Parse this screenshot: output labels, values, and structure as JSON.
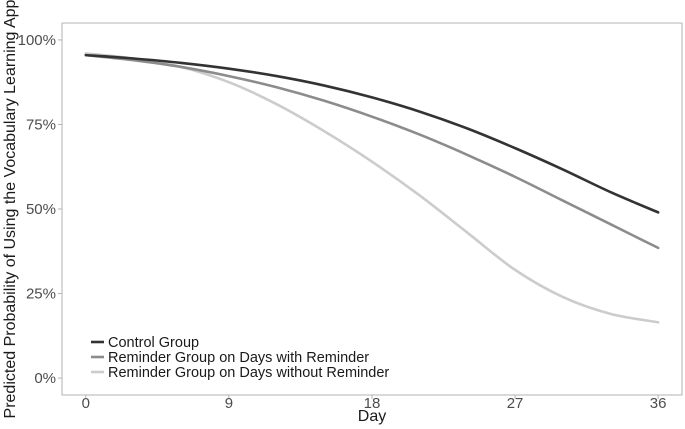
{
  "chart_data": {
    "type": "line",
    "xlabel": "Day",
    "ylabel": "Predicted Probability of Using the Vocabulary Learning App",
    "xlim": [
      -1.5,
      37.5
    ],
    "ylim": [
      -0.05,
      1.05
    ],
    "x_ticks": [
      0,
      9,
      18,
      27,
      36
    ],
    "x_tick_labels": [
      "0",
      "9",
      "18",
      "27",
      "36"
    ],
    "y_ticks": [
      0,
      0.25,
      0.5,
      0.75,
      1.0
    ],
    "y_tick_labels": [
      "0%",
      "25%",
      "50%",
      "75%",
      "100%"
    ],
    "grid": false,
    "legend_position": "bottom-left",
    "x": [
      0,
      3,
      6,
      9,
      12,
      15,
      18,
      21,
      24,
      27,
      30,
      33,
      36
    ],
    "series": [
      {
        "name": "Control Group",
        "color": "#333333",
        "values": [
          0.955,
          0.945,
          0.932,
          0.915,
          0.893,
          0.865,
          0.83,
          0.788,
          0.738,
          0.68,
          0.617,
          0.55,
          0.49
        ]
      },
      {
        "name": "Reminder Group on Days with Reminder",
        "color": "#8c8c8c",
        "values": [
          0.955,
          0.94,
          0.92,
          0.893,
          0.86,
          0.82,
          0.773,
          0.72,
          0.66,
          0.595,
          0.525,
          0.455,
          0.385
        ]
      },
      {
        "name": "Reminder Group on Days without Reminder",
        "color": "#cccccc",
        "values": [
          0.96,
          0.945,
          0.92,
          0.875,
          0.81,
          0.73,
          0.64,
          0.54,
          0.43,
          0.32,
          0.24,
          0.19,
          0.165
        ]
      }
    ]
  }
}
